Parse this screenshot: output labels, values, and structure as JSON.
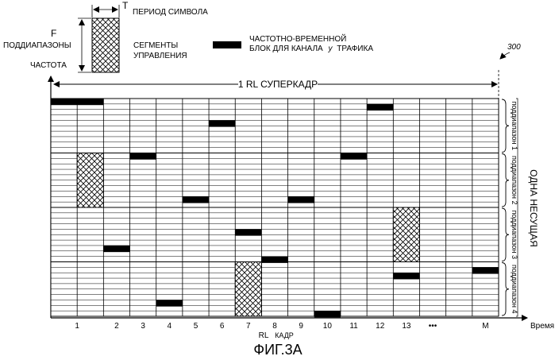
{
  "legend": {
    "T": "T",
    "symbol_period": "ПЕРИОД СИМВОЛА",
    "F": "F",
    "subbands": "ПОДДИАПАЗОНЫ",
    "frequency": "ЧАСТОТА",
    "control_segments_line1": "СЕГМЕНТЫ",
    "control_segments_line2": "УПРАВЛЕНИЯ",
    "traffic_block_line1": "ЧАСТОТНО-ВРЕМЕННОЙ",
    "traffic_block_line2": "БЛОК ДЛЯ КАНАЛА",
    "traffic_block_u": "у",
    "traffic_block_line2_end": "ТРАФИКА"
  },
  "ref_number": "300",
  "superframe_label": "1 RL СУПЕРКАДР",
  "frame_labels": [
    "1",
    "2",
    "3",
    "4",
    "5",
    "6",
    "7",
    "8",
    "9",
    "10",
    "11",
    "12",
    "13",
    "•••",
    "M"
  ],
  "rl_frame_label_line1": "RL",
  "rl_frame_label_line2": "КАДР",
  "time_axis_label": "Время",
  "subband_labels": [
    "поддиапазон 1",
    "поддиапазон 2",
    "поддиапазон 3",
    "поддиапазон 4"
  ],
  "carrier_label": "ОДНА НЕСУЩАЯ",
  "caption": "ФИГ.3А",
  "grid": {
    "columns": 17,
    "rows": 40,
    "subband_rows": 10
  },
  "control_segments": [
    {
      "col": 1,
      "row_start": 10,
      "rows": 10
    },
    {
      "col": 7,
      "row_start": 30,
      "rows": 10
    },
    {
      "col": 13,
      "row_start": 20,
      "rows": 10
    }
  ],
  "traffic_blocks": [
    {
      "col_start": 0,
      "cols": 2,
      "row": 0
    },
    {
      "col_start": 6,
      "cols": 1,
      "row": 4
    },
    {
      "col_start": 12,
      "cols": 1,
      "row": 1
    },
    {
      "col_start": 3,
      "cols": 1,
      "row": 10
    },
    {
      "col_start": 11,
      "cols": 1,
      "row": 10
    },
    {
      "col_start": 5,
      "cols": 1,
      "row": 18
    },
    {
      "col_start": 9,
      "cols": 1,
      "row": 18
    },
    {
      "col_start": 7,
      "cols": 1,
      "row": 24
    },
    {
      "col_start": 2,
      "cols": 1,
      "row": 27
    },
    {
      "col_start": 16,
      "cols": 1,
      "row": 31
    },
    {
      "col_start": 8,
      "cols": 1,
      "row": 29
    },
    {
      "col_start": 13,
      "cols": 1,
      "row": 32
    },
    {
      "col_start": 4,
      "cols": 1,
      "row": 37
    },
    {
      "col_start": 10,
      "cols": 1,
      "row": 39
    }
  ]
}
